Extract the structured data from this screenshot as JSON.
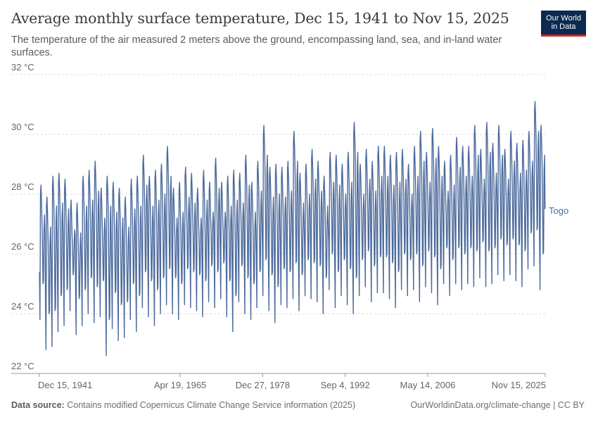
{
  "header": {
    "title": "Average monthly surface temperature, Dec 15, 1941 to Nov 15, 2025",
    "subtitle": "The temperature of the air measured 2 meters above the ground, encompassing land, sea, and in-land water surfaces."
  },
  "logo": {
    "line1": "Our World",
    "line2": "in Data"
  },
  "footer": {
    "source_label": "Data source:",
    "source_text": "Contains modified Copernicus Climate Change Service information (2025)",
    "link_text": "OurWorldinData.org/climate-change | CC BY"
  },
  "colors": {
    "series": "#4c6a9c",
    "grid": "#dddddd",
    "axis": "#999999",
    "logo_bg": "#0b2a4f",
    "logo_accent": "#ce261e"
  },
  "chart_data": {
    "type": "line",
    "title": "Average monthly surface temperature, Dec 15, 1941 to Nov 15, 2025",
    "xlabel": "",
    "ylabel": "",
    "ylim": [
      22,
      32
    ],
    "y_ticks": [
      22,
      24,
      26,
      28,
      30,
      32
    ],
    "y_tick_labels": [
      "22 °C",
      "24 °C",
      "26 °C",
      "28 °C",
      "30 °C",
      "32 °C"
    ],
    "xlim": [
      1941.95,
      2025.87
    ],
    "x_ticks": [
      1941.95,
      1965.3,
      1978.99,
      1992.68,
      2006.37,
      2025.87
    ],
    "x_tick_labels": [
      "Dec 15, 1941",
      "Apr 19, 1965",
      "Dec 27, 1978",
      "Sep 4, 1992",
      "May 14, 2006",
      "Nov 15, 2025"
    ],
    "grid": true,
    "series": [
      {
        "name": "Togo",
        "label": "Togo",
        "start_year": 1941.96,
        "step_years": 0.0833,
        "annual_peaks": [
          28.3,
          27.9,
          28.6,
          28.7,
          28.5,
          27.8,
          27.7,
          28.6,
          28.8,
          29.1,
          28.2,
          28.6,
          28.4,
          28.2,
          27.9,
          28.5,
          28.6,
          29.3,
          28.6,
          28.8,
          29.0,
          29.6,
          28.2,
          28.4,
          28.9,
          28.7,
          28.2,
          28.8,
          28.4,
          29.2,
          28.4,
          28.6,
          28.8,
          28.7,
          29.3,
          28.4,
          29.1,
          30.3,
          28.9,
          29.0,
          28.9,
          29.1,
          30.1,
          28.7,
          29.0,
          29.5,
          29.1,
          28.6,
          29.4,
          29.3,
          29.0,
          29.4,
          30.4,
          29.0,
          29.5,
          29.1,
          29.6,
          29.6,
          29.3,
          29.4,
          29.5,
          29.0,
          29.6,
          30.1,
          29.4,
          30.2,
          29.6,
          29.1,
          29.3,
          29.9,
          29.6,
          29.6,
          30.3,
          29.5,
          30.4,
          29.7,
          30.3,
          29.5,
          30.1,
          29.7,
          29.8,
          30.1,
          31.1,
          30.3
        ],
        "annual_troughs": [
          23.8,
          22.8,
          22.9,
          23.4,
          23.6,
          24.1,
          23.3,
          23.6,
          24.0,
          23.7,
          23.9,
          22.6,
          23.5,
          23.1,
          23.2,
          23.8,
          23.4,
          24.2,
          23.9,
          23.6,
          24.0,
          24.3,
          24.0,
          23.8,
          24.3,
          24.2,
          24.1,
          23.9,
          24.4,
          24.2,
          24.5,
          23.9,
          23.4,
          24.4,
          24.0,
          23.8,
          24.2,
          24.6,
          24.1,
          23.7,
          24.3,
          24.2,
          24.5,
          24.1,
          24.6,
          24.5,
          24.4,
          24.0,
          24.8,
          24.2,
          24.6,
          24.3,
          24.0,
          24.6,
          24.9,
          24.4,
          24.7,
          24.7,
          24.5,
          24.2,
          24.8,
          24.6,
          24.8,
          24.4,
          24.9,
          24.7,
          24.3,
          25.0,
          24.6,
          25.0,
          24.8,
          25.0,
          24.9,
          25.2,
          24.9,
          25.0,
          25.3,
          25.1,
          25.3,
          25.1,
          24.9,
          25.5,
          25.6,
          24.8
        ],
        "secondary_peak_offset": -1.2,
        "secondary_dip_offset": -1.5,
        "last_value": 27.5
      }
    ]
  }
}
